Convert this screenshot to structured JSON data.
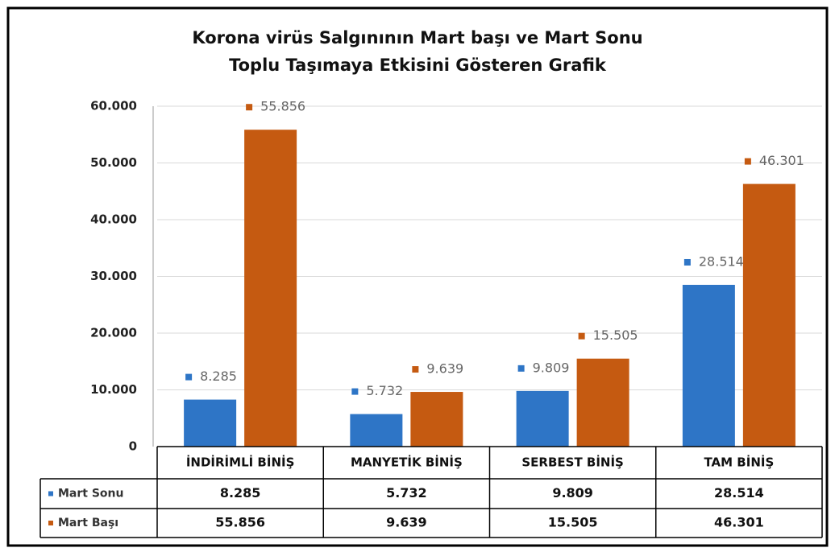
{
  "chart_data": {
    "type": "bar",
    "title": "Korona virüs Salgınının Mart başı ve Mart Sonu\nToplu Taşımaya Etkisini Gösteren Grafik",
    "categories": [
      "İNDİRİMLİ BİNİŞ",
      "MANYETİK BİNİŞ",
      "SERBEST BİNİŞ",
      "TAM BİNİŞ"
    ],
    "series": [
      {
        "name": "Mart Sonu",
        "color": "#2e75c6",
        "values": [
          8285,
          5732,
          9809,
          28514
        ],
        "value_labels": [
          "8.285",
          "5.732",
          "9.809",
          "28.514"
        ]
      },
      {
        "name": "Mart Başı",
        "color": "#c55a11",
        "values": [
          55856,
          9639,
          15505,
          46301
        ],
        "value_labels": [
          "55.856",
          "9.639",
          "15.505",
          "46.301"
        ]
      }
    ],
    "ylim": [
      0,
      60000
    ],
    "yticks": [
      0,
      {
        "value": 10000,
        "label": "10.000"
      },
      {
        "value": 20000,
        "label": "20.000"
      },
      {
        "value": 30000,
        "label": "30.000"
      },
      {
        "value": 40000,
        "label": "40.000"
      },
      {
        "value": 50000,
        "label": "50.000"
      },
      {
        "value": 60000,
        "label": "60.000"
      }
    ],
    "grid": true
  }
}
